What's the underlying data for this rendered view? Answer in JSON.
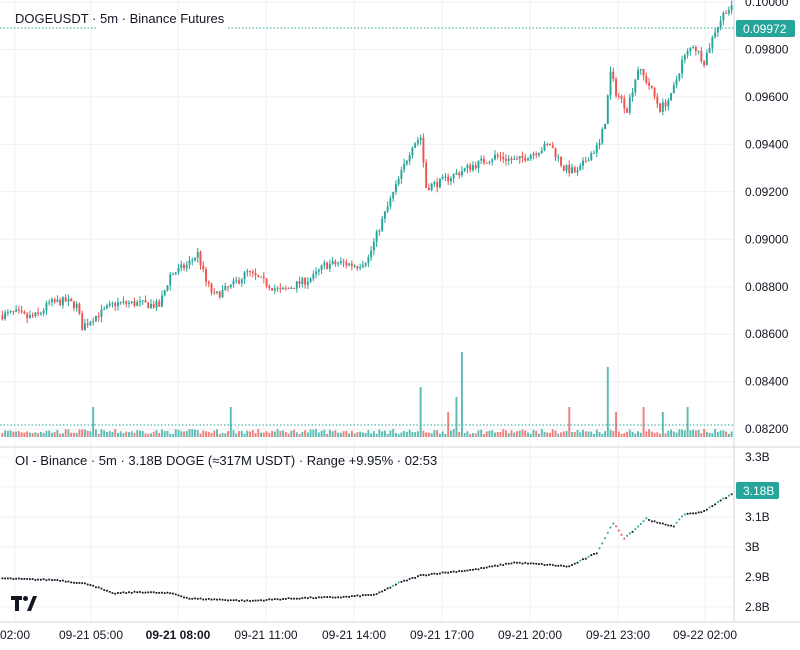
{
  "legend": {
    "price": "DOGEUSDT · 5m · Binance Futures",
    "oi": "OI - Binance · 5m · 3.18B DOGE (≈317M USDT) · Range +9.95% · 02:53"
  },
  "colors": {
    "up": "#26a69a",
    "down": "#ef5350",
    "grid": "#eef0f3",
    "oi_line": "#131722",
    "badge": "#26a69a"
  },
  "chart_data": [
    {
      "type": "candlestick",
      "name": "DOGEUSDT",
      "ylim": [
        0.08125,
        0.10008
      ],
      "y_ticks": [
        "0.08200",
        "0.08400",
        "0.08600",
        "0.08800",
        "0.09000",
        "0.09200",
        "0.09400",
        "0.09600",
        "0.09800",
        "0.10000"
      ],
      "last_price": "0.09972",
      "x_ticks": [
        "02:00",
        "09-21 05:00",
        "09-21 08:00",
        "09-21 11:00",
        "09-21 14:00",
        "09-21 17:00",
        "09-21 20:00",
        "09-21 23:00",
        "09-22 02:00"
      ],
      "x_tick_bold": "09-21 08:00",
      "trend": [
        [
          0,
          0.0868
        ],
        [
          6,
          0.0869
        ],
        [
          10,
          0.0867
        ],
        [
          14,
          0.0868
        ],
        [
          18,
          0.0873
        ],
        [
          24,
          0.0874
        ],
        [
          28,
          0.0872
        ],
        [
          30,
          0.0863
        ],
        [
          34,
          0.0867
        ],
        [
          42,
          0.0873
        ],
        [
          50,
          0.0873
        ],
        [
          58,
          0.0872
        ],
        [
          62,
          0.0885
        ],
        [
          68,
          0.0889
        ],
        [
          72,
          0.0894
        ],
        [
          75,
          0.0882
        ],
        [
          78,
          0.0876
        ],
        [
          84,
          0.088
        ],
        [
          90,
          0.0886
        ],
        [
          96,
          0.0882
        ],
        [
          102,
          0.0878
        ],
        [
          108,
          0.0881
        ],
        [
          114,
          0.0884
        ],
        [
          118,
          0.0889
        ],
        [
          124,
          0.089
        ],
        [
          130,
          0.0889
        ],
        [
          134,
          0.0892
        ],
        [
          138,
          0.0905
        ],
        [
          145,
          0.0925
        ],
        [
          150,
          0.094
        ],
        [
          153,
          0.0943
        ],
        [
          155,
          0.0922
        ],
        [
          160,
          0.0924
        ],
        [
          170,
          0.093
        ],
        [
          180,
          0.0935
        ],
        [
          188,
          0.0933
        ],
        [
          195,
          0.0937
        ],
        [
          200,
          0.094
        ],
        [
          205,
          0.093
        ],
        [
          210,
          0.0928
        ],
        [
          214,
          0.0935
        ],
        [
          218,
          0.094
        ],
        [
          220,
          0.095
        ],
        [
          222,
          0.097
        ],
        [
          224,
          0.0962
        ],
        [
          228,
          0.0955
        ],
        [
          232,
          0.0972
        ],
        [
          236,
          0.0965
        ],
        [
          240,
          0.0955
        ],
        [
          244,
          0.096
        ],
        [
          248,
          0.0975
        ],
        [
          252,
          0.0982
        ],
        [
          256,
          0.0975
        ],
        [
          260,
          0.0988
        ],
        [
          264,
          0.0997
        ]
      ],
      "volume_spikes": [
        [
          33,
          3
        ],
        [
          83,
          3
        ],
        [
          152,
          5
        ],
        [
          162,
          2.5
        ],
        [
          165,
          4
        ],
        [
          167,
          8.5
        ],
        [
          206,
          3
        ],
        [
          220,
          7
        ],
        [
          223,
          2.5
        ],
        [
          233,
          3
        ],
        [
          240,
          2.5
        ],
        [
          249,
          3
        ]
      ]
    },
    {
      "type": "line",
      "name": "OI - Binance",
      "ylim": [
        "2.75B",
        "3.32B"
      ],
      "y_ticks": [
        "2.8B",
        "2.9B",
        "3B",
        "3.1B",
        "3.2B",
        "3.3B"
      ],
      "last_value": "3.18B",
      "trend": [
        [
          0,
          2.895
        ],
        [
          10,
          2.892
        ],
        [
          20,
          2.89
        ],
        [
          32,
          2.875
        ],
        [
          40,
          2.845
        ],
        [
          50,
          2.85
        ],
        [
          62,
          2.845
        ],
        [
          68,
          2.828
        ],
        [
          78,
          2.825
        ],
        [
          90,
          2.82
        ],
        [
          100,
          2.826
        ],
        [
          110,
          2.83
        ],
        [
          124,
          2.833
        ],
        [
          136,
          2.842
        ],
        [
          144,
          2.88
        ],
        [
          152,
          2.905
        ],
        [
          156,
          2.91
        ],
        [
          172,
          2.925
        ],
        [
          186,
          2.948
        ],
        [
          196,
          2.942
        ],
        [
          206,
          2.935
        ],
        [
          216,
          2.98
        ],
        [
          222,
          3.08
        ],
        [
          226,
          3.03
        ],
        [
          230,
          3.06
        ],
        [
          234,
          3.095
        ],
        [
          238,
          3.08
        ],
        [
          244,
          3.07
        ],
        [
          248,
          3.11
        ],
        [
          254,
          3.115
        ],
        [
          262,
          3.16
        ],
        [
          266,
          3.18
        ]
      ]
    }
  ]
}
